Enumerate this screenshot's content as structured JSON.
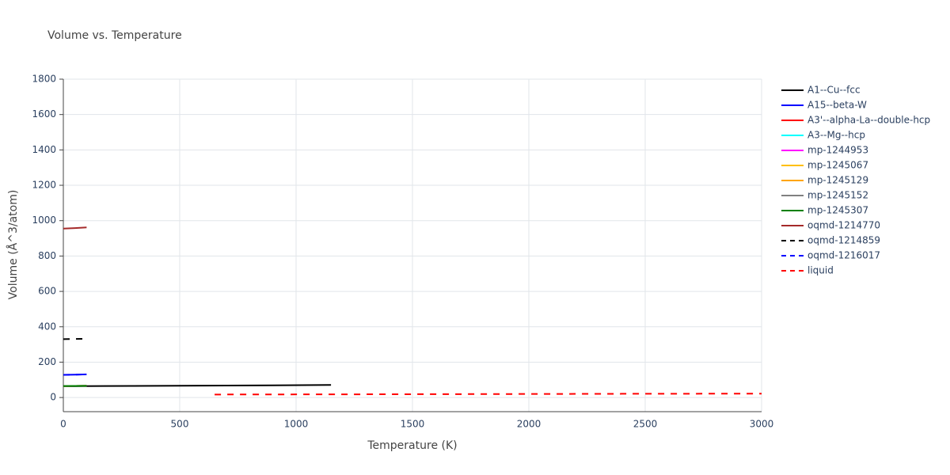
{
  "chart_data": {
    "type": "line",
    "title": "Volume vs. Temperature",
    "x_label": "Temperature (K)",
    "y_label": "Volume (Å^3/atom)",
    "xlim": [
      0,
      3000
    ],
    "ylim": [
      -80,
      1800
    ],
    "xticks": [
      0,
      500,
      1000,
      1500,
      2000,
      2500,
      3000
    ],
    "yticks": [
      0,
      200,
      400,
      600,
      800,
      1000,
      1200,
      1400,
      1600,
      1800
    ],
    "grid": true,
    "legend": "right",
    "series": [
      {
        "name": "A1--Cu--fcc",
        "color": "#000000",
        "dash": false,
        "x": [
          0,
          300,
          600,
          900,
          1150
        ],
        "values": [
          64,
          65.5,
          67,
          69,
          71
        ]
      },
      {
        "name": "A15--beta-W",
        "color": "#0000ff",
        "dash": false,
        "x": [
          0,
          50,
          100
        ],
        "values": [
          128,
          129,
          131
        ]
      },
      {
        "name": "A3'--alpha-La--double-hcp",
        "color": "#ff0000",
        "dash": false,
        "x": [
          0,
          50,
          100
        ],
        "values": [
          65,
          65.5,
          66
        ]
      },
      {
        "name": "A3--Mg--hcp",
        "color": "#00ffff",
        "dash": false,
        "x": [
          0,
          50,
          100
        ],
        "values": [
          65,
          65.5,
          66
        ]
      },
      {
        "name": "mp-1244953",
        "color": "#ff00ff",
        "dash": false,
        "x": [
          0,
          50,
          100
        ],
        "values": [
          65,
          65.5,
          66
        ]
      },
      {
        "name": "mp-1245067",
        "color": "#ffbf00",
        "dash": false,
        "x": [
          0,
          50,
          100
        ],
        "values": [
          65,
          65.5,
          66
        ]
      },
      {
        "name": "mp-1245129",
        "color": "#ffa500",
        "dash": false,
        "x": [
          0,
          50,
          100
        ],
        "values": [
          65,
          65.5,
          66
        ]
      },
      {
        "name": "mp-1245152",
        "color": "#808080",
        "dash": false,
        "x": [
          0,
          50,
          100
        ],
        "values": [
          65,
          65.5,
          66
        ]
      },
      {
        "name": "mp-1245307",
        "color": "#008000",
        "dash": false,
        "x": [
          0,
          50,
          100
        ],
        "values": [
          65,
          65.5,
          66
        ]
      },
      {
        "name": "oqmd-1214770",
        "color": "#a52a2a",
        "dash": false,
        "x": [
          0,
          50,
          100
        ],
        "values": [
          955,
          958,
          962
        ]
      },
      {
        "name": "oqmd-1214859",
        "color": "#000000",
        "dash": true,
        "x": [
          0,
          50,
          100
        ],
        "values": [
          330,
          331,
          332
        ]
      },
      {
        "name": "oqmd-1216017",
        "color": "#0000ff",
        "dash": true,
        "x": [
          0,
          50,
          100
        ],
        "values": [
          128,
          129,
          131
        ]
      },
      {
        "name": "liquid",
        "color": "#ff0000",
        "dash": true,
        "x": [
          650,
          1200,
          1800,
          2400,
          3000
        ],
        "values": [
          17,
          18,
          19.5,
          21,
          22
        ]
      }
    ]
  }
}
